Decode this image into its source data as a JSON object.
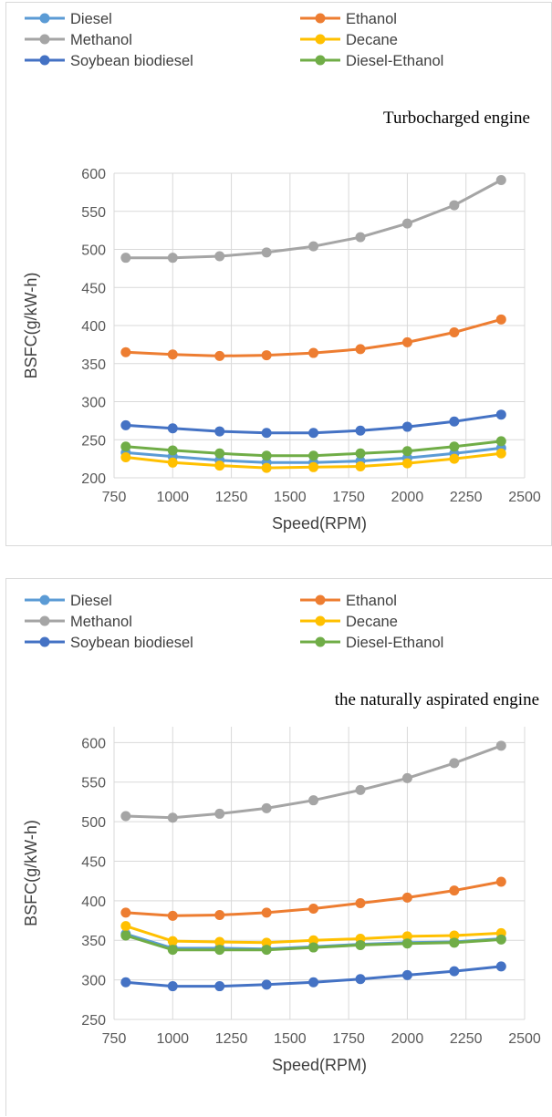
{
  "chart_data": [
    {
      "type": "line",
      "title": "Turbocharged engine",
      "xlabel": "Speed(RPM)",
      "ylabel": "BSFC(g/kW-h)",
      "xlim": [
        750,
        2500
      ],
      "ylim": [
        200,
        600
      ],
      "xticks": [
        750,
        1000,
        1250,
        1500,
        1750,
        2000,
        2250,
        2500
      ],
      "yticks": [
        200,
        250,
        300,
        350,
        400,
        450,
        500,
        550,
        600
      ],
      "grid": "on",
      "legend": "top",
      "x": [
        800,
        1000,
        1200,
        1400,
        1600,
        1800,
        2000,
        2200,
        2400
      ],
      "series": [
        {
          "name": "Diesel",
          "color": "#5b9bd5",
          "values": [
            233,
            228,
            223,
            220,
            220,
            222,
            226,
            232,
            239
          ]
        },
        {
          "name": "Ethanol",
          "color": "#ed7d31",
          "values": [
            365,
            362,
            360,
            361,
            364,
            369,
            378,
            391,
            408
          ]
        },
        {
          "name": "Methanol",
          "color": "#a5a5a5",
          "values": [
            489,
            489,
            491,
            496,
            504,
            516,
            534,
            558,
            591
          ]
        },
        {
          "name": "Decane",
          "color": "#ffc000",
          "values": [
            227,
            220,
            216,
            213,
            214,
            215,
            219,
            225,
            232
          ]
        },
        {
          "name": "Soybean biodiesel",
          "color": "#4472c4",
          "values": [
            269,
            265,
            261,
            259,
            259,
            262,
            267,
            274,
            283
          ]
        },
        {
          "name": "Diesel-Ethanol",
          "color": "#70ad47",
          "values": [
            241,
            236,
            232,
            229,
            229,
            232,
            235,
            241,
            248
          ]
        }
      ]
    },
    {
      "type": "line",
      "title": "the naturally aspirated engine",
      "xlabel": "Speed(RPM)",
      "ylabel": "BSFC(g/kW-h)",
      "xlim": [
        750,
        2500
      ],
      "ylim": [
        250,
        620
      ],
      "xticks": [
        750,
        1000,
        1250,
        1500,
        1750,
        2000,
        2250,
        2500
      ],
      "yticks": [
        250,
        300,
        350,
        400,
        450,
        500,
        550,
        600
      ],
      "grid": "on",
      "legend": "top",
      "x": [
        800,
        1000,
        1200,
        1400,
        1600,
        1800,
        2000,
        2200,
        2400
      ],
      "series": [
        {
          "name": "Diesel",
          "color": "#5b9bd5",
          "values": [
            358,
            340,
            340,
            339,
            342,
            345,
            347,
            348,
            352
          ]
        },
        {
          "name": "Ethanol",
          "color": "#ed7d31",
          "values": [
            385,
            381,
            382,
            385,
            390,
            397,
            404,
            413,
            424
          ]
        },
        {
          "name": "Methanol",
          "color": "#a5a5a5",
          "values": [
            507,
            505,
            510,
            517,
            527,
            540,
            555,
            574,
            596
          ]
        },
        {
          "name": "Decane",
          "color": "#ffc000",
          "values": [
            368,
            349,
            348,
            347,
            350,
            352,
            355,
            356,
            359
          ]
        },
        {
          "name": "Soybean biodiesel",
          "color": "#4472c4",
          "values": [
            297,
            292,
            292,
            294,
            297,
            301,
            306,
            311,
            317
          ]
        },
        {
          "name": "Diesel-Ethanol",
          "color": "#70ad47",
          "values": [
            356,
            338,
            338,
            338,
            341,
            344,
            346,
            347,
            351
          ]
        }
      ]
    }
  ]
}
